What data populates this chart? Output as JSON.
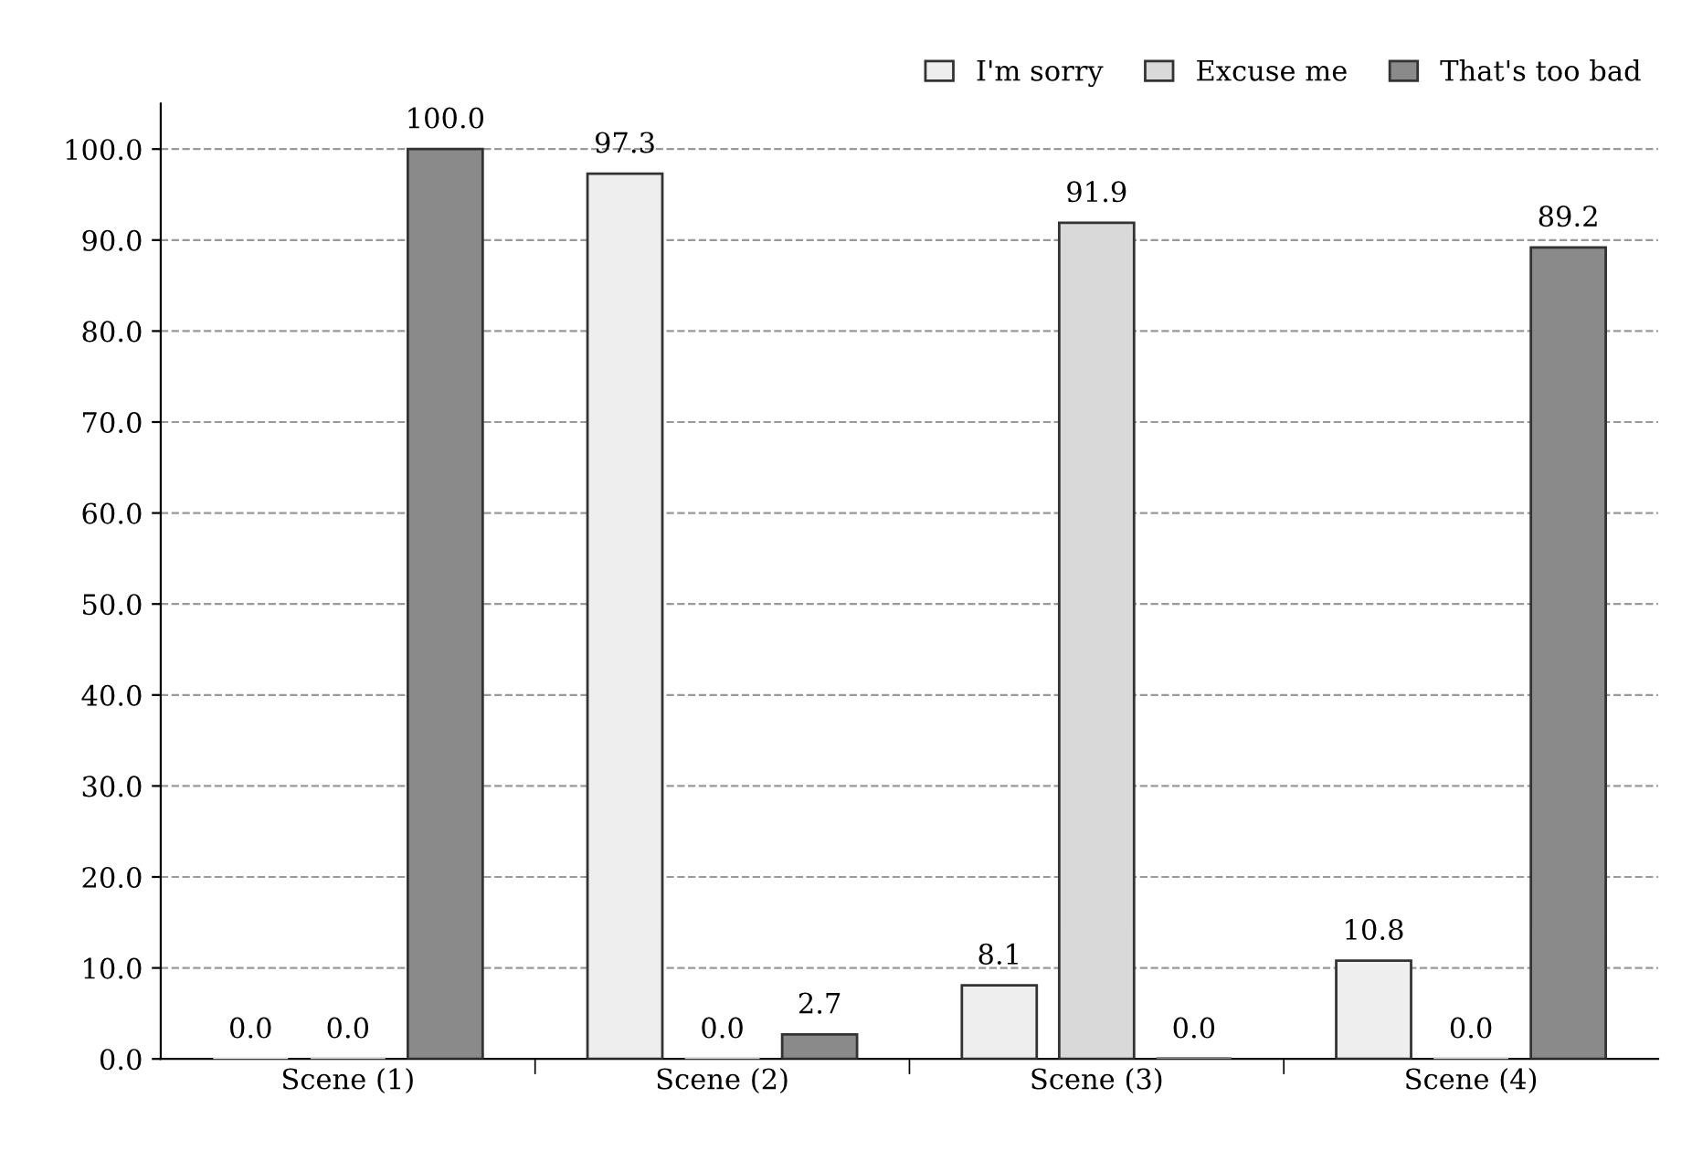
{
  "chart_data": {
    "type": "bar",
    "categories": [
      "Scene (1)",
      "Scene (2)",
      "Scene (3)",
      "Scene (4)"
    ],
    "series": [
      {
        "name": "I'm sorry",
        "color": "#eeeeee",
        "values": [
          0.0,
          97.3,
          8.1,
          10.8
        ],
        "value_labels": [
          "0.0",
          "97.3",
          "8.1",
          "10.8"
        ]
      },
      {
        "name": "Excuse me",
        "color": "#d9d9d9",
        "values": [
          0.0,
          0.0,
          91.9,
          0.0
        ],
        "value_labels": [
          "0.0",
          "0.0",
          "91.9",
          "0.0"
        ]
      },
      {
        "name": "That's too bad",
        "color": "#8a8a8a",
        "values": [
          100.0,
          2.7,
          0.0,
          89.2
        ],
        "value_labels": [
          "100.0",
          "2.7",
          "0.0",
          "89.2"
        ]
      }
    ],
    "ylim": [
      0,
      105
    ],
    "yticks": [
      {
        "value": 0,
        "label": "0.0"
      },
      {
        "value": 10,
        "label": "10.0"
      },
      {
        "value": 20,
        "label": "20.0"
      },
      {
        "value": 30,
        "label": "30.0"
      },
      {
        "value": 40,
        "label": "40.0"
      },
      {
        "value": 50,
        "label": "50.0"
      },
      {
        "value": 60,
        "label": "60.0"
      },
      {
        "value": 70,
        "label": "70.0"
      },
      {
        "value": 80,
        "label": "80.0"
      },
      {
        "value": 90,
        "label": "90.0"
      },
      {
        "value": 100,
        "label": "100.0"
      }
    ],
    "grid": "y",
    "legend": "top right"
  }
}
